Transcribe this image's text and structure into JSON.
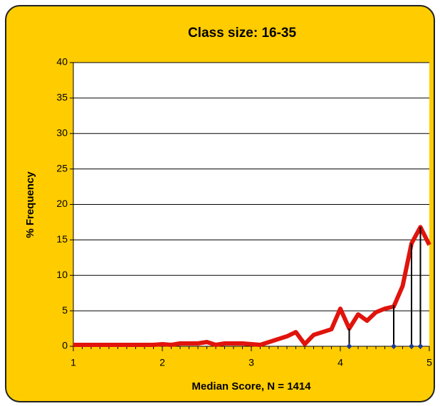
{
  "chart_data": {
    "type": "line",
    "title": "Class size: 16-35",
    "xlabel": "Median Score, N = 1414",
    "ylabel": "% Frequency",
    "xlim": [
      1,
      5
    ],
    "xticks": [
      1,
      2,
      3,
      4,
      5
    ],
    "ylim": [
      0,
      40
    ],
    "yticks": [
      0,
      5,
      10,
      15,
      20,
      25,
      30,
      35,
      40
    ],
    "grid": true,
    "series": [
      {
        "color": "#e0140c",
        "x": [
          1.0,
          1.1,
          1.2,
          1.3,
          1.4,
          1.5,
          1.6,
          1.7,
          1.8,
          1.9,
          2.0,
          2.1,
          2.2,
          2.3,
          2.4,
          2.5,
          2.6,
          2.7,
          2.8,
          2.9,
          3.0,
          3.1,
          3.2,
          3.3,
          3.4,
          3.5,
          3.6,
          3.7,
          3.8,
          3.9,
          4.0,
          4.1,
          4.2,
          4.3,
          4.4,
          4.5,
          4.6,
          4.7,
          4.8,
          4.9,
          5.0
        ],
        "values": [
          0.2,
          0.2,
          0.2,
          0.2,
          0.2,
          0.2,
          0.2,
          0.2,
          0.2,
          0.2,
          0.3,
          0.2,
          0.4,
          0.4,
          0.4,
          0.6,
          0.2,
          0.4,
          0.4,
          0.4,
          0.3,
          0.2,
          0.6,
          1.0,
          1.4,
          2.0,
          0.3,
          1.6,
          2.0,
          2.4,
          5.3,
          2.5,
          4.5,
          3.6,
          4.8,
          5.3,
          5.6,
          8.5,
          14.5,
          16.8,
          14.3
        ]
      },
      {
        "color": "#1f3a93",
        "x": [
          4.1,
          4.6,
          4.8,
          4.9
        ],
        "values": [
          0,
          0,
          0,
          0
        ],
        "errors": [
          2.5,
          5.8,
          14.5,
          16.8
        ]
      }
    ]
  }
}
